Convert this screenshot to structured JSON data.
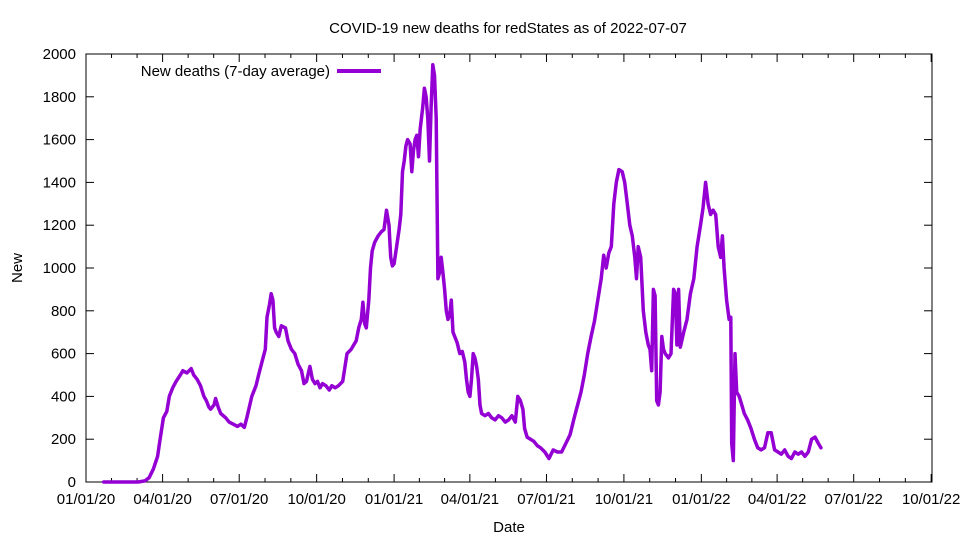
{
  "chart_data": {
    "type": "line",
    "title": "COVID-19 new deaths for redStates as of 2022-07-07",
    "xlabel": "Date",
    "ylabel": "New",
    "xlim": [
      0,
      1005
    ],
    "ylim": [
      0,
      2000
    ],
    "x_ticks": [
      {
        "label": "01/01/20",
        "day": 0
      },
      {
        "label": "04/01/20",
        "day": 91
      },
      {
        "label": "07/01/20",
        "day": 182
      },
      {
        "label": "10/01/20",
        "day": 274
      },
      {
        "label": "01/01/21",
        "day": 366
      },
      {
        "label": "04/01/21",
        "day": 456
      },
      {
        "label": "07/01/21",
        "day": 547
      },
      {
        "label": "10/01/21",
        "day": 639
      },
      {
        "label": "01/01/22",
        "day": 731
      },
      {
        "label": "04/01/22",
        "day": 821
      },
      {
        "label": "07/01/22",
        "day": 912
      },
      {
        "label": "10/01/22",
        "day": 1004
      }
    ],
    "y_ticks": [
      "0",
      "200",
      "400",
      "600",
      "800",
      "1000",
      "1200",
      "1400",
      "1600",
      "1800",
      "2000"
    ],
    "legend": "top-left",
    "series": [
      {
        "name": "New deaths (7-day average)",
        "color": "#9400d3",
        "x_unit": "days since 01/01/20",
        "points": [
          [
            21,
            0
          ],
          [
            50,
            0
          ],
          [
            62,
            0
          ],
          [
            70,
            5
          ],
          [
            75,
            20
          ],
          [
            80,
            60
          ],
          [
            85,
            120
          ],
          [
            88,
            200
          ],
          [
            92,
            300
          ],
          [
            96,
            330
          ],
          [
            99,
            400
          ],
          [
            103,
            440
          ],
          [
            107,
            470
          ],
          [
            112,
            500
          ],
          [
            115,
            520
          ],
          [
            120,
            510
          ],
          [
            125,
            530
          ],
          [
            128,
            500
          ],
          [
            132,
            480
          ],
          [
            136,
            450
          ],
          [
            140,
            400
          ],
          [
            143,
            380
          ],
          [
            146,
            350
          ],
          [
            148,
            340
          ],
          [
            152,
            360
          ],
          [
            154,
            390
          ],
          [
            157,
            350
          ],
          [
            160,
            320
          ],
          [
            166,
            300
          ],
          [
            170,
            280
          ],
          [
            175,
            270
          ],
          [
            180,
            260
          ],
          [
            184,
            270
          ],
          [
            188,
            255
          ],
          [
            191,
            300
          ],
          [
            194,
            350
          ],
          [
            197,
            400
          ],
          [
            202,
            450
          ],
          [
            205,
            500
          ],
          [
            209,
            560
          ],
          [
            213,
            620
          ],
          [
            215,
            770
          ],
          [
            218,
            830
          ],
          [
            220,
            880
          ],
          [
            222,
            850
          ],
          [
            224,
            720
          ],
          [
            226,
            700
          ],
          [
            229,
            680
          ],
          [
            232,
            730
          ],
          [
            237,
            720
          ],
          [
            240,
            660
          ],
          [
            244,
            620
          ],
          [
            248,
            600
          ],
          [
            252,
            550
          ],
          [
            256,
            520
          ],
          [
            259,
            460
          ],
          [
            262,
            470
          ],
          [
            266,
            540
          ],
          [
            269,
            480
          ],
          [
            272,
            460
          ],
          [
            275,
            470
          ],
          [
            278,
            440
          ],
          [
            281,
            460
          ],
          [
            285,
            450
          ],
          [
            289,
            430
          ],
          [
            292,
            450
          ],
          [
            296,
            440
          ],
          [
            300,
            450
          ],
          [
            305,
            470
          ],
          [
            310,
            600
          ],
          [
            315,
            620
          ],
          [
            318,
            640
          ],
          [
            321,
            660
          ],
          [
            324,
            720
          ],
          [
            327,
            760
          ],
          [
            329,
            840
          ],
          [
            331,
            740
          ],
          [
            333,
            720
          ],
          [
            336,
            850
          ],
          [
            338,
            1000
          ],
          [
            340,
            1080
          ],
          [
            343,
            1120
          ],
          [
            347,
            1150
          ],
          [
            351,
            1170
          ],
          [
            354,
            1180
          ],
          [
            357,
            1270
          ],
          [
            360,
            1200
          ],
          [
            362,
            1050
          ],
          [
            364,
            1010
          ],
          [
            366,
            1020
          ],
          [
            369,
            1100
          ],
          [
            372,
            1180
          ],
          [
            374,
            1250
          ],
          [
            376,
            1450
          ],
          [
            378,
            1500
          ],
          [
            380,
            1570
          ],
          [
            382,
            1600
          ],
          [
            385,
            1580
          ],
          [
            387,
            1450
          ],
          [
            389,
            1550
          ],
          [
            391,
            1600
          ],
          [
            393,
            1620
          ],
          [
            395,
            1520
          ],
          [
            397,
            1650
          ],
          [
            400,
            1750
          ],
          [
            402,
            1840
          ],
          [
            404,
            1800
          ],
          [
            406,
            1700
          ],
          [
            408,
            1500
          ],
          [
            410,
            1750
          ],
          [
            412,
            1950
          ],
          [
            414,
            1900
          ],
          [
            416,
            1700
          ],
          [
            418,
            950
          ],
          [
            420,
            980
          ],
          [
            422,
            1050
          ],
          [
            424,
            980
          ],
          [
            426,
            900
          ],
          [
            428,
            800
          ],
          [
            430,
            760
          ],
          [
            432,
            780
          ],
          [
            434,
            850
          ],
          [
            436,
            700
          ],
          [
            438,
            680
          ],
          [
            441,
            650
          ],
          [
            444,
            600
          ],
          [
            447,
            610
          ],
          [
            450,
            560
          ],
          [
            452,
            480
          ],
          [
            454,
            420
          ],
          [
            456,
            400
          ],
          [
            458,
            480
          ],
          [
            460,
            600
          ],
          [
            462,
            580
          ],
          [
            464,
            540
          ],
          [
            466,
            480
          ],
          [
            468,
            360
          ],
          [
            470,
            320
          ],
          [
            474,
            310
          ],
          [
            478,
            320
          ],
          [
            482,
            300
          ],
          [
            486,
            290
          ],
          [
            490,
            310
          ],
          [
            494,
            300
          ],
          [
            498,
            280
          ],
          [
            502,
            290
          ],
          [
            506,
            310
          ],
          [
            510,
            280
          ],
          [
            513,
            400
          ],
          [
            516,
            380
          ],
          [
            519,
            340
          ],
          [
            521,
            250
          ],
          [
            524,
            210
          ],
          [
            528,
            200
          ],
          [
            532,
            190
          ],
          [
            536,
            170
          ],
          [
            540,
            160
          ],
          [
            545,
            140
          ],
          [
            550,
            110
          ],
          [
            555,
            150
          ],
          [
            560,
            140
          ],
          [
            565,
            140
          ],
          [
            570,
            180
          ],
          [
            575,
            220
          ],
          [
            580,
            300
          ],
          [
            584,
            360
          ],
          [
            588,
            420
          ],
          [
            592,
            500
          ],
          [
            596,
            600
          ],
          [
            600,
            680
          ],
          [
            604,
            750
          ],
          [
            608,
            850
          ],
          [
            612,
            950
          ],
          [
            615,
            1060
          ],
          [
            618,
            1000
          ],
          [
            621,
            1070
          ],
          [
            624,
            1100
          ],
          [
            627,
            1300
          ],
          [
            630,
            1400
          ],
          [
            633,
            1460
          ],
          [
            637,
            1450
          ],
          [
            640,
            1400
          ],
          [
            643,
            1300
          ],
          [
            646,
            1200
          ],
          [
            649,
            1150
          ],
          [
            652,
            1050
          ],
          [
            654,
            950
          ],
          [
            656,
            1100
          ],
          [
            659,
            1050
          ],
          [
            662,
            800
          ],
          [
            665,
            700
          ],
          [
            668,
            640
          ],
          [
            670,
            620
          ],
          [
            672,
            520
          ],
          [
            674,
            900
          ],
          [
            676,
            870
          ],
          [
            678,
            380
          ],
          [
            680,
            360
          ],
          [
            682,
            420
          ],
          [
            684,
            680
          ],
          [
            686,
            620
          ],
          [
            688,
            600
          ],
          [
            692,
            580
          ],
          [
            695,
            600
          ],
          [
            698,
            900
          ],
          [
            700,
            880
          ],
          [
            702,
            640
          ],
          [
            704,
            900
          ],
          [
            706,
            630
          ],
          [
            710,
            700
          ],
          [
            714,
            760
          ],
          [
            718,
            880
          ],
          [
            722,
            950
          ],
          [
            726,
            1100
          ],
          [
            730,
            1200
          ],
          [
            733,
            1280
          ],
          [
            736,
            1400
          ],
          [
            739,
            1300
          ],
          [
            742,
            1250
          ],
          [
            745,
            1270
          ],
          [
            748,
            1250
          ],
          [
            751,
            1100
          ],
          [
            754,
            1050
          ],
          [
            756,
            1150
          ],
          [
            758,
            1000
          ],
          [
            761,
            850
          ],
          [
            764,
            760
          ],
          [
            766,
            770
          ],
          [
            767,
            180
          ],
          [
            769,
            100
          ],
          [
            771,
            600
          ],
          [
            773,
            420
          ],
          [
            776,
            400
          ],
          [
            779,
            360
          ],
          [
            782,
            320
          ],
          [
            786,
            290
          ],
          [
            790,
            250
          ],
          [
            794,
            200
          ],
          [
            798,
            160
          ],
          [
            802,
            150
          ],
          [
            806,
            160
          ],
          [
            810,
            230
          ],
          [
            814,
            230
          ],
          [
            818,
            150
          ],
          [
            822,
            140
          ],
          [
            826,
            130
          ],
          [
            830,
            150
          ],
          [
            834,
            120
          ],
          [
            838,
            110
          ],
          [
            842,
            140
          ],
          [
            846,
            130
          ],
          [
            850,
            140
          ],
          [
            854,
            120
          ],
          [
            858,
            140
          ],
          [
            862,
            200
          ],
          [
            866,
            210
          ],
          [
            870,
            180
          ],
          [
            873,
            160
          ]
        ]
      }
    ]
  }
}
